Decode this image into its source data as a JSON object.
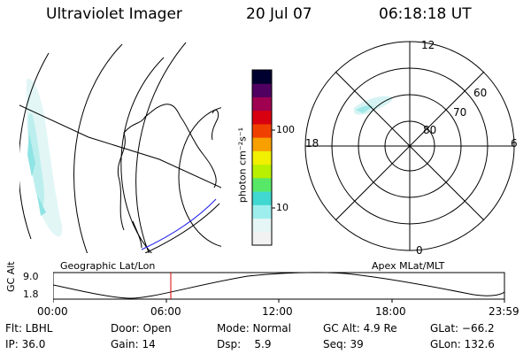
{
  "header": {
    "title": "Ultraviolet Imager",
    "date": "20 Jul 07",
    "time": "06:18:18 UT"
  },
  "colorbar": {
    "label": "photon cm⁻²s⁻¹",
    "ticks": [
      "100",
      "10"
    ],
    "colors": [
      "#f2f2f2",
      "#e6f5f5",
      "#9eeeee",
      "#40d8d0",
      "#58e868",
      "#b8f000",
      "#f0f000",
      "#f8a000",
      "#f04000",
      "#d80010",
      "#a00050",
      "#500060",
      "#000030"
    ]
  },
  "polar": {
    "labels": {
      "top": "12",
      "left": "18",
      "right": "6",
      "bottom": "0"
    },
    "lat_labels": [
      "60",
      "70",
      "80"
    ]
  },
  "timeline": {
    "y_axis_label": "GC Alt",
    "y_ticks": [
      "9.0",
      "1.8"
    ],
    "left_title": "Geographic Lat/Lon",
    "right_title": "Apex MLat/MLT",
    "x_ticks": [
      "00:00",
      "06:00",
      "12:00",
      "18:00",
      "23:59"
    ],
    "marker_color": "#dd0000"
  },
  "footer": {
    "row1": [
      "Flt: LBHL",
      "Door: Open",
      "Mode: Normal",
      "GC Alt: 4.9 Re",
      "GLat: −66.2"
    ],
    "row2": [
      "IP: 36.0",
      "Gain: 14",
      "Dsp:    5.9",
      "Seq: 39",
      "GLon: 132.6"
    ]
  }
}
